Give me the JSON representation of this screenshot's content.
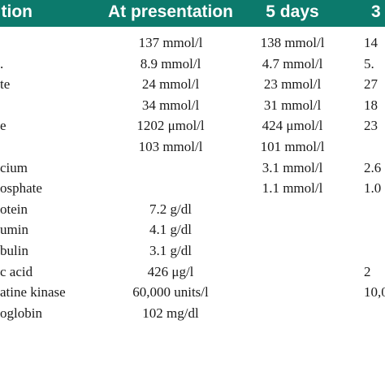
{
  "table": {
    "headers": [
      "tion",
      "At presentation",
      "5 days",
      "3"
    ],
    "rows": [
      [
        "",
        "137 mmol/l",
        "138 mmol/l",
        "14"
      ],
      [
        ".",
        "8.9 mmol/l",
        "4.7 mmol/l",
        "5."
      ],
      [
        "te",
        "24 mmol/l",
        "23 mmol/l",
        "27"
      ],
      [
        "",
        "34 mmol/l",
        "31 mmol/l",
        "18"
      ],
      [
        "e",
        "1202 μmol/l",
        "424 μmol/l",
        "23"
      ],
      [
        "",
        "103 mmol/l",
        "101 mmol/l",
        ""
      ],
      [
        "cium",
        "",
        "3.1 mmol/l",
        "2.6"
      ],
      [
        "osphate",
        "",
        "1.1 mmol/l",
        "1.0"
      ],
      [
        "otein",
        "7.2 g/dl",
        "",
        ""
      ],
      [
        "umin",
        "4.1 g/dl",
        "",
        ""
      ],
      [
        "bulin",
        "3.1 g/dl",
        "",
        ""
      ],
      [
        "c acid",
        "426 μg/l",
        "",
        "2"
      ],
      [
        "atine kinase",
        "60,000 units/l",
        "",
        "10,0"
      ],
      [
        "oglobin",
        "102 mg/dl",
        "",
        ""
      ]
    ]
  },
  "colors": {
    "header_bg": "#0c7a6c",
    "header_text": "#ffffff",
    "body_text": "#1a1a1a"
  }
}
